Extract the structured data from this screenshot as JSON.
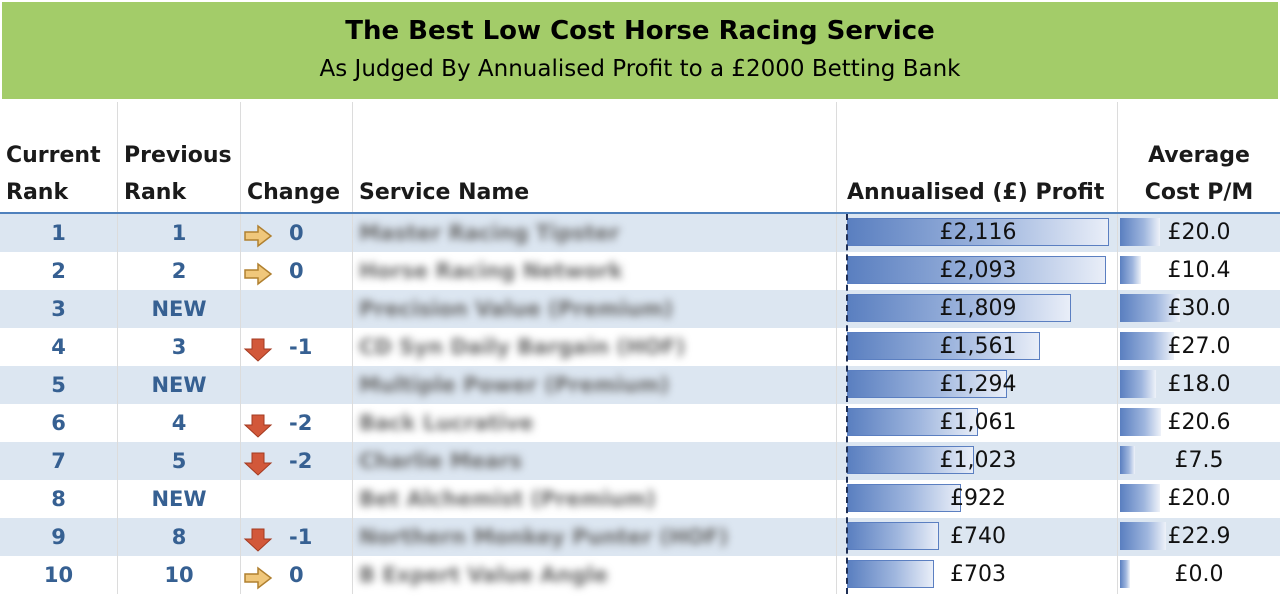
{
  "banner": {
    "title": "The Best Low Cost Horse Racing Service",
    "subtitle": "As Judged By Annualised Profit to a £2000 Betting Bank"
  },
  "headers": {
    "current_rank_1": "Current",
    "current_rank_2": "Rank",
    "previous_rank_1": "Previous",
    "previous_rank_2": "Rank",
    "change": "Change",
    "service_name": "Service Name",
    "profit": "Annualised (£) Profit",
    "cost_1": "Average",
    "cost_2": "Cost P/M"
  },
  "colors": {
    "banner": "#a3cc69",
    "row_alt": "#dce6f1",
    "rank_text": "#366092",
    "arrow_same": "#e8b862",
    "arrow_down": "#d2583a"
  },
  "rows": [
    {
      "rank": "1",
      "previous": "1",
      "change_icon": "arrow-right-icon",
      "change": "0",
      "service": "Master Racing Tipster",
      "profit": "£2,116",
      "profit_value": 2116,
      "cost": "£20.0",
      "cost_value": 20.0
    },
    {
      "rank": "2",
      "previous": "2",
      "change_icon": "arrow-right-icon",
      "change": "0",
      "service": "Horse Racing Network",
      "profit": "£2,093",
      "profit_value": 2093,
      "cost": "£10.4",
      "cost_value": 10.4
    },
    {
      "rank": "3",
      "previous": "NEW",
      "change_icon": "",
      "change": "",
      "service": "Precision Value (Premium)",
      "profit": "£1,809",
      "profit_value": 1809,
      "cost": "£30.0",
      "cost_value": 30.0
    },
    {
      "rank": "4",
      "previous": "3",
      "change_icon": "arrow-down-icon",
      "change": "-1",
      "service": "CD Syn Daily Bargain (HOF)",
      "profit": "£1,561",
      "profit_value": 1561,
      "cost": "£27.0",
      "cost_value": 27.0
    },
    {
      "rank": "5",
      "previous": "NEW",
      "change_icon": "",
      "change": "",
      "service": "Multiple Power (Premium)",
      "profit": "£1,294",
      "profit_value": 1294,
      "cost": "£18.0",
      "cost_value": 18.0
    },
    {
      "rank": "6",
      "previous": "4",
      "change_icon": "arrow-down-icon",
      "change": "-2",
      "service": "Back Lucrative",
      "profit": "£1,061",
      "profit_value": 1061,
      "cost": "£20.6",
      "cost_value": 20.6
    },
    {
      "rank": "7",
      "previous": "5",
      "change_icon": "arrow-down-icon",
      "change": "-2",
      "service": "Charlie Mears",
      "profit": "£1,023",
      "profit_value": 1023,
      "cost": "£7.5",
      "cost_value": 7.5
    },
    {
      "rank": "8",
      "previous": "NEW",
      "change_icon": "",
      "change": "",
      "service": "Bet Alchemist (Premium)",
      "profit": "£922",
      "profit_value": 922,
      "cost": "£20.0",
      "cost_value": 20.0
    },
    {
      "rank": "9",
      "previous": "8",
      "change_icon": "arrow-down-icon",
      "change": "-1",
      "service": "Northern Monkey Punter (HOF)",
      "profit": "£740",
      "profit_value": 740,
      "cost": "£22.9",
      "cost_value": 22.9
    },
    {
      "rank": "10",
      "previous": "10",
      "change_icon": "arrow-right-icon",
      "change": "0",
      "service": "B Expert Value Angle",
      "profit": "£703",
      "profit_value": 703,
      "cost": "£0.0",
      "cost_value": 0.0
    }
  ]
}
